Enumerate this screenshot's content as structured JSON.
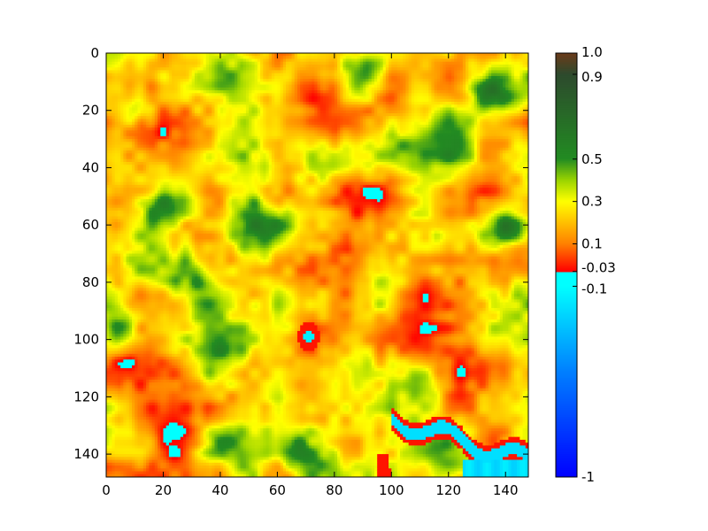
{
  "chart_data": {
    "type": "heatmap",
    "title": "",
    "xlabel": "",
    "ylabel": "",
    "image_size": [
      148,
      148
    ],
    "xlim": [
      0,
      148
    ],
    "ylim": [
      148,
      0
    ],
    "x_ticks": [
      "0",
      "20",
      "40",
      "60",
      "80",
      "100",
      "120",
      "140"
    ],
    "y_ticks": [
      "0",
      "20",
      "40",
      "60",
      "80",
      "100",
      "120",
      "140"
    ],
    "grid": false,
    "value_range": [
      -1,
      1
    ],
    "colorbar": {
      "ticks": [
        "1.0",
        "0.9",
        "0.5",
        "0.3",
        "0.1",
        "-0.03",
        "-0.1",
        "-1"
      ],
      "tick_values": [
        1.0,
        0.9,
        0.5,
        0.3,
        0.1,
        -0.03,
        -0.1,
        -1
      ],
      "stops": [
        {
          "value": -1.0,
          "color": "#0000ff"
        },
        {
          "value": -0.5,
          "color": "#0080ff"
        },
        {
          "value": -0.1,
          "color": "#00ffff"
        },
        {
          "value": -0.03,
          "color": "#00ffff"
        },
        {
          "value": -0.03,
          "color": "#ff0000"
        },
        {
          "value": 0.1,
          "color": "#ff8000"
        },
        {
          "value": 0.3,
          "color": "#ffff00"
        },
        {
          "value": 0.4,
          "color": "#9ad400"
        },
        {
          "value": 0.5,
          "color": "#228b22"
        },
        {
          "value": 0.9,
          "color": "#2d4a2d"
        },
        {
          "value": 1.0,
          "color": "#6b3a1a"
        }
      ]
    },
    "description": "NDVI-like raster with mostly orange (about 0.1-0.2) and yellow/green patches (0.3-0.5); small cyan negative regions near (70,100) and along the bottom-right channel around x 100-145, y 125-148; red (about 0) fringes along the channel."
  }
}
